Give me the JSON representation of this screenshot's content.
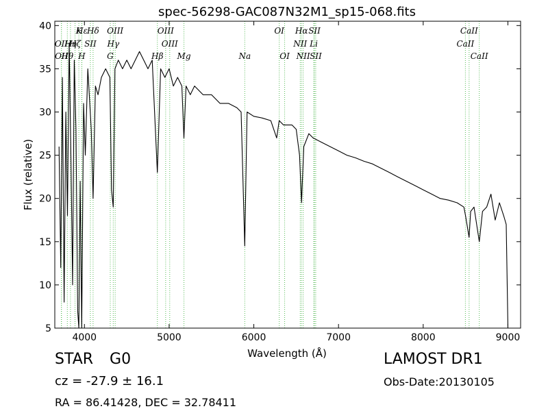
{
  "chart_data": {
    "type": "line",
    "title": "spec-56298-GAC087N32M1_sp15-068.fits",
    "xlabel": "Wavelength (Å)",
    "ylabel": "Flux (relative)",
    "xlim": [
      3650,
      9150
    ],
    "ylim": [
      5,
      40.5
    ],
    "xticks": [
      4000,
      5000,
      6000,
      7000,
      8000,
      9000
    ],
    "yticks": [
      5,
      10,
      15,
      20,
      25,
      30,
      35,
      40
    ],
    "grid": false,
    "series": [
      {
        "x": [
          3700,
          3720,
          3740,
          3760,
          3780,
          3800,
          3820,
          3840,
          3860,
          3880,
          3900,
          3920,
          3934,
          3950,
          3968,
          3990,
          4010,
          4040,
          4080,
          4102,
          4130,
          4160,
          4200,
          4250,
          4300,
          4320,
          4340,
          4360,
          4400,
          4450,
          4500,
          4550,
          4600,
          4650,
          4700,
          4750,
          4800,
          4861,
          4900,
          4950,
          5000,
          5050,
          5100,
          5150,
          5175,
          5200,
          5250,
          5300,
          5400,
          5500,
          5600,
          5700,
          5800,
          5850,
          5893,
          5920,
          6000,
          6100,
          6200,
          6270,
          6300,
          6350,
          6400,
          6450,
          6500,
          6540,
          6563,
          6590,
          6650,
          6700,
          6800,
          6900,
          7000,
          7100,
          7200,
          7300,
          7400,
          7500,
          7600,
          7700,
          7800,
          7900,
          8000,
          8100,
          8200,
          8300,
          8400,
          8480,
          8500,
          8542,
          8560,
          8600,
          8662,
          8700,
          8750,
          8800,
          8850,
          8900,
          8950,
          8980,
          9000
        ],
        "values": [
          26,
          12,
          34,
          8,
          30,
          18,
          38,
          25,
          10,
          36,
          28,
          7,
          5,
          22,
          5,
          31,
          25,
          35,
          28,
          20,
          33,
          32,
          34,
          35,
          34,
          21,
          19,
          35,
          36,
          35,
          36,
          35,
          36,
          37,
          36,
          35,
          36,
          23,
          35,
          34,
          35,
          33,
          34,
          33,
          27,
          33,
          32,
          33,
          32,
          32,
          31,
          31,
          30.5,
          30,
          14.5,
          30,
          29.5,
          29.3,
          29,
          27,
          29,
          28.5,
          28.5,
          28.5,
          28,
          25,
          19.5,
          26,
          27.5,
          27,
          26.5,
          26,
          25.5,
          25,
          24.7,
          24.3,
          24,
          23.5,
          23,
          22.5,
          22,
          21.5,
          21,
          20.5,
          20,
          19.8,
          19.5,
          19,
          18,
          15.5,
          18.5,
          19,
          15,
          18.5,
          19,
          20.5,
          17.5,
          19.5,
          18,
          17,
          5
        ]
      }
    ],
    "lines": [
      {
        "label": "Hε",
        "wl": 3970,
        "tier": 0
      },
      {
        "label": "K",
        "wl": 3934,
        "tier": 0
      },
      {
        "label": "Hδ",
        "wl": 4102,
        "tier": 0
      },
      {
        "label": "OIII",
        "wl": 4363,
        "tier": 0
      },
      {
        "label": "OIII",
        "wl": 4959,
        "tier": 0
      },
      {
        "label": "OI",
        "wl": 6300,
        "tier": 0
      },
      {
        "label": "Hα",
        "wl": 6563,
        "tier": 0
      },
      {
        "label": "SII",
        "wl": 6716,
        "tier": 0
      },
      {
        "label": "CaII",
        "wl": 8542,
        "tier": 0
      },
      {
        "label": "OII",
        "wl": 3727,
        "tier": 1
      },
      {
        "label": "Hη",
        "wl": 3835,
        "tier": 1
      },
      {
        "label": "Hζ",
        "wl": 3889,
        "tier": 1
      },
      {
        "label": "SII",
        "wl": 4070,
        "tier": 1
      },
      {
        "label": "Hγ",
        "wl": 4340,
        "tier": 1
      },
      {
        "label": "OIII",
        "wl": 5007,
        "tier": 1
      },
      {
        "label": "NII",
        "wl": 6548,
        "tier": 1
      },
      {
        "label": "Li",
        "wl": 6708,
        "tier": 1
      },
      {
        "label": "CaII",
        "wl": 8498,
        "tier": 1
      },
      {
        "label": "OII",
        "wl": 3729,
        "tier": 2
      },
      {
        "label": "Hθ",
        "wl": 3798,
        "tier": 2
      },
      {
        "label": "H",
        "wl": 3968,
        "tier": 2
      },
      {
        "label": "G",
        "wl": 4305,
        "tier": 2
      },
      {
        "label": "Hβ",
        "wl": 4861,
        "tier": 2
      },
      {
        "label": "Mg",
        "wl": 5175,
        "tier": 2
      },
      {
        "label": "Na",
        "wl": 5893,
        "tier": 2
      },
      {
        "label": "OI",
        "wl": 6364,
        "tier": 2
      },
      {
        "label": "NII",
        "wl": 6583,
        "tier": 2
      },
      {
        "label": "SII",
        "wl": 6731,
        "tier": 2
      },
      {
        "label": "CaII",
        "wl": 8662,
        "tier": 2
      }
    ]
  },
  "info": {
    "object_class": "STAR",
    "subclass": "G0",
    "survey": "LAMOST DR1",
    "cz": "cz = -27.9 ± 16.1",
    "obs_date": "Obs-Date:20130105",
    "radec": "RA = 86.41428, DEC = 32.78411"
  },
  "colors": {
    "spectrum": "#000000",
    "line_marker": "#55bb55",
    "axes": "#000000"
  }
}
